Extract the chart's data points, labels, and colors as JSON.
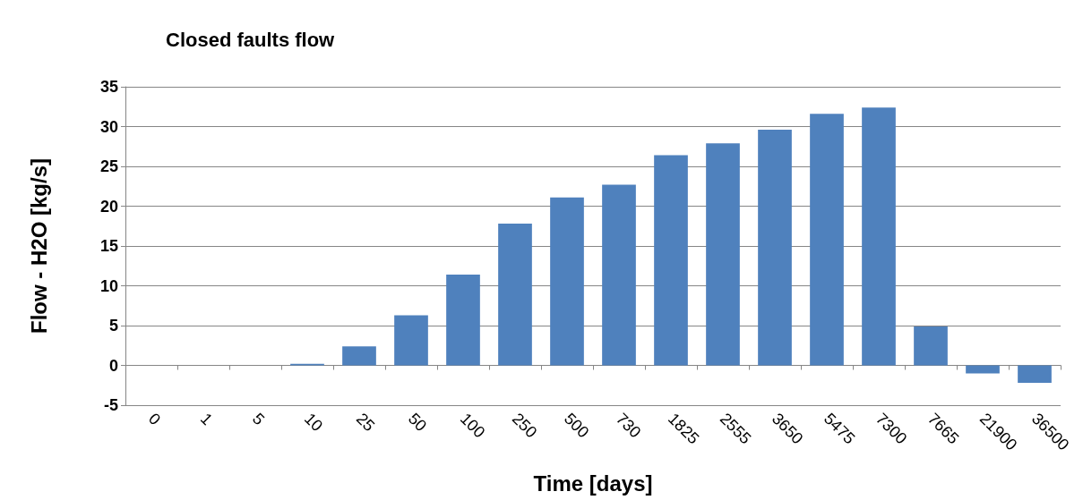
{
  "chart_data": {
    "type": "bar",
    "title": "Closed faults flow",
    "xlabel": "Time [days]",
    "ylabel": "Flow - H2O [kg/s]",
    "categories": [
      "0",
      "1",
      "5",
      "10",
      "25",
      "50",
      "100",
      "250",
      "500",
      "730",
      "1825",
      "2555",
      "3650",
      "5475",
      "7300",
      "7665",
      "21900",
      "36500"
    ],
    "series": [
      {
        "color": "#4f81bd",
        "values": [
          0,
          0,
          0,
          0.2,
          2.4,
          6.3,
          11.4,
          17.8,
          21.1,
          22.7,
          26.4,
          27.9,
          29.6,
          31.6,
          32.4,
          4.9,
          -1.0,
          -2.2
        ]
      }
    ],
    "ylim": [
      -5,
      35
    ],
    "yticks": [
      -5,
      0,
      5,
      10,
      15,
      20,
      25,
      30,
      35
    ],
    "grid": "y"
  }
}
